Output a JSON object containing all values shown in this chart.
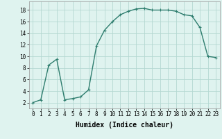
{
  "x": [
    0,
    1,
    2,
    3,
    4,
    5,
    6,
    7,
    8,
    9,
    10,
    11,
    12,
    13,
    14,
    15,
    16,
    17,
    18,
    19,
    20,
    21,
    22,
    23
  ],
  "y": [
    2,
    2.5,
    8.5,
    9.5,
    2.5,
    2.7,
    3.0,
    4.2,
    11.8,
    14.5,
    16.0,
    17.2,
    17.8,
    18.2,
    18.3,
    18.0,
    18.0,
    18.0,
    17.8,
    17.2,
    17.0,
    15.0,
    10.0,
    9.8
  ],
  "line_color": "#2e7d6e",
  "marker": "+",
  "markersize": 3,
  "linewidth": 1.0,
  "bg_color": "#dff3ef",
  "grid_color": "#b5d8d2",
  "xlabel": "Humidex (Indice chaleur)",
  "xlim": [
    -0.5,
    23.5
  ],
  "ylim": [
    1,
    19.5
  ],
  "yticks": [
    2,
    4,
    6,
    8,
    10,
    12,
    14,
    16,
    18
  ],
  "xticks": [
    0,
    1,
    2,
    3,
    4,
    5,
    6,
    7,
    8,
    9,
    10,
    11,
    12,
    13,
    14,
    15,
    16,
    17,
    18,
    19,
    20,
    21,
    22,
    23
  ],
  "tick_fontsize": 5.5,
  "xlabel_fontsize": 7
}
